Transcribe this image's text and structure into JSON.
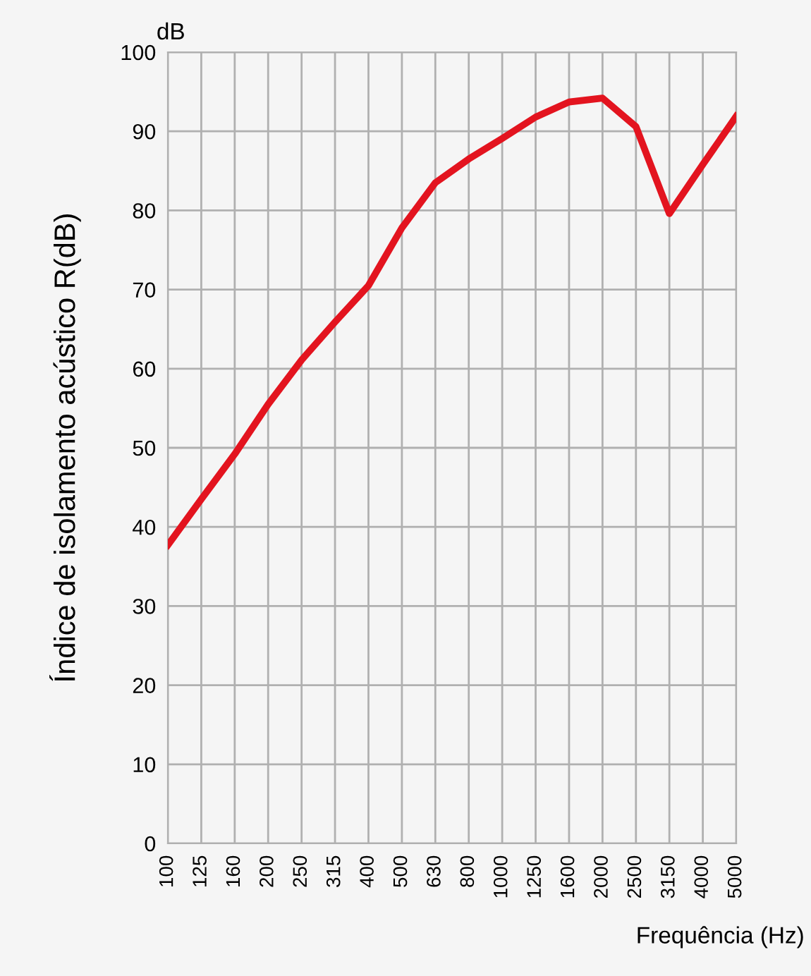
{
  "chart_data": {
    "type": "line",
    "ylabel": "Índice de isolamento acústico R(dB)",
    "xlabel": "Frequência (Hz)",
    "annotations": [
      "dB"
    ],
    "categories": [
      "100",
      "125",
      "160",
      "200",
      "250",
      "315",
      "400",
      "500",
      "630",
      "800",
      "1000",
      "1250",
      "1600",
      "2000",
      "2500",
      "3150",
      "4000",
      "5000"
    ],
    "series": [
      {
        "color": "#e3141f",
        "values": [
          37.7,
          43.5,
          49.2,
          55.5,
          61.1,
          65.9,
          70.5,
          77.8,
          83.5,
          86.5,
          89.1,
          91.8,
          93.7,
          94.2,
          90.6,
          79.6,
          85.8,
          91.9
        ]
      }
    ],
    "ylim": [
      0,
      100
    ],
    "yticks": [
      0,
      10,
      20,
      30,
      40,
      50,
      60,
      70,
      80,
      90,
      100
    ],
    "grid": true,
    "marker": "none",
    "line_style": "solid"
  }
}
